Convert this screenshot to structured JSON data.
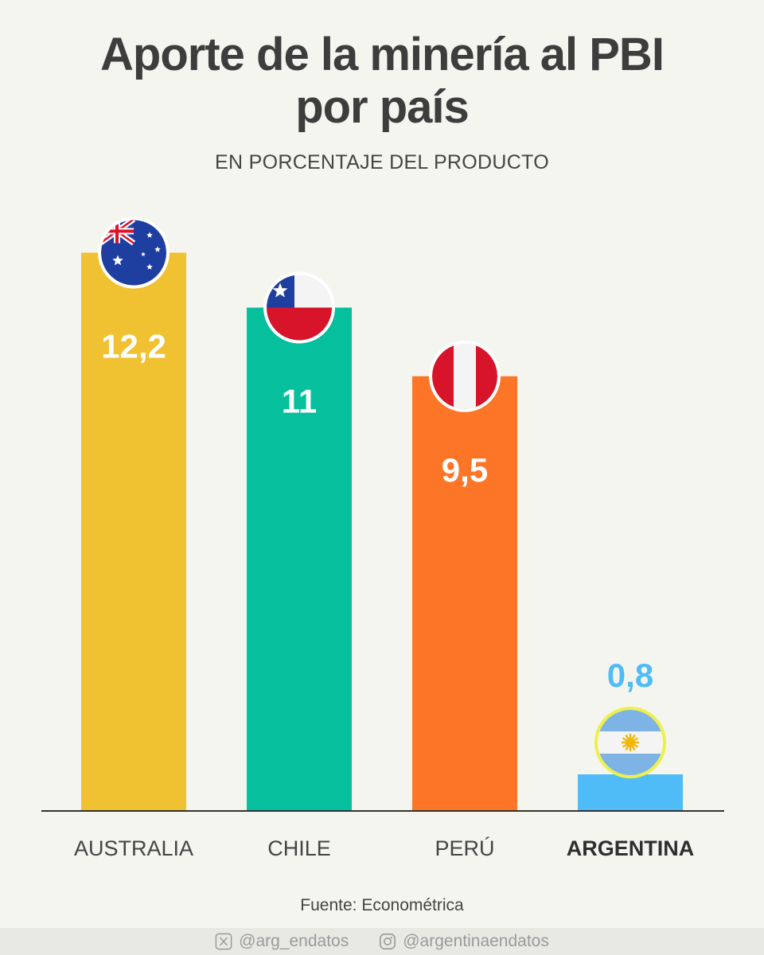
{
  "title_line1": "Aporte de la minería al PBI",
  "title_line2": "por país",
  "subtitle": "EN PORCENTAJE DEL PRODUCTO",
  "chart_data": {
    "type": "bar",
    "categories": [
      "AUSTRALIA",
      "CHILE",
      "PERÚ",
      "ARGENTINA"
    ],
    "values": [
      12.2,
      11,
      9.5,
      0.8
    ],
    "value_labels": [
      "12,2",
      "11",
      "9,5",
      "0,8"
    ],
    "colors": [
      "#f0c232",
      "#05bf9d",
      "#fd7628",
      "#4fbcf7"
    ],
    "highlight_category": "ARGENTINA",
    "grid": false,
    "legend": "none"
  },
  "flags": [
    "australia-flag-icon",
    "chile-flag-icon",
    "peru-flag-icon",
    "argentina-flag-icon"
  ],
  "source": "Fuente: Econométrica",
  "footer": {
    "x_handle": "@arg_endatos",
    "instagram_handle": "@argentinaendatos"
  }
}
